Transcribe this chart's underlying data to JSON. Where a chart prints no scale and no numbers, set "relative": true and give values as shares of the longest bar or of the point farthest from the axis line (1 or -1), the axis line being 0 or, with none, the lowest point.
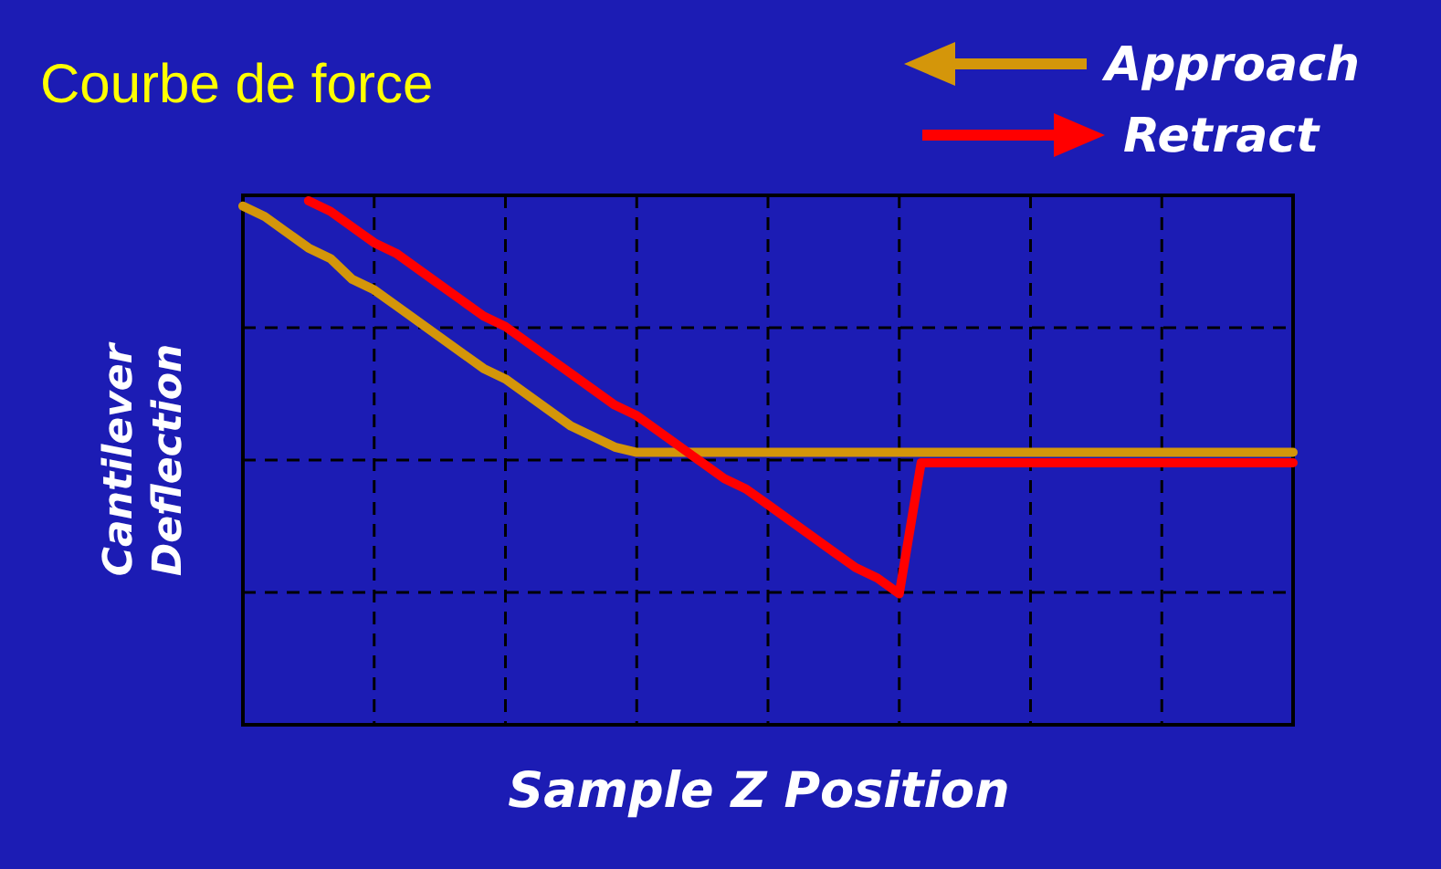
{
  "chart_data": {
    "type": "line",
    "title": "Courbe de force",
    "xlabel": "Sample Z Position",
    "ylabel": "Cantilever\nDeflection",
    "relative": true,
    "grid": true,
    "legend": "top right",
    "marker": "none",
    "line_style": "solid",
    "categories": [
      null,
      null,
      null,
      null,
      null,
      null,
      null,
      null,
      null,
      null,
      null,
      null,
      null,
      null,
      null,
      null,
      null,
      null,
      null,
      null,
      null,
      null,
      null,
      null,
      null,
      null,
      null,
      null,
      null,
      null,
      null,
      null,
      null,
      null,
      null,
      null,
      null,
      null,
      null,
      null,
      null,
      null,
      null,
      null,
      null,
      null,
      null,
      null,
      null
    ],
    "series": [
      {
        "name": "Approach",
        "color": "#d4960a",
        "values": [
          0.99,
          0.97,
          0.94,
          0.91,
          0.89,
          0.85,
          0.83,
          0.8,
          0.77,
          0.74,
          0.71,
          0.68,
          0.66,
          0.63,
          0.6,
          0.57,
          0.55,
          0.53,
          0.52,
          0.52,
          0.52,
          0.52,
          0.52,
          0.52,
          0.52,
          0.52,
          0.52,
          0.52,
          0.52,
          0.52,
          0.52,
          0.52,
          0.52,
          0.52,
          0.52,
          0.52,
          0.52,
          0.52,
          0.52,
          0.52,
          0.52,
          0.52,
          0.52,
          0.52,
          0.52,
          0.52,
          0.52,
          0.52,
          0.52
        ]
      },
      {
        "name": "Retract",
        "color": "#ff0000",
        "values": [
          null,
          null,
          null,
          1,
          0.98,
          0.95,
          0.92,
          0.9,
          0.87,
          0.84,
          0.81,
          0.78,
          0.76,
          0.73,
          0.7,
          0.67,
          0.64,
          0.61,
          0.59,
          0.56,
          0.53,
          0.5,
          0.47,
          0.45,
          0.42,
          0.39,
          0.36,
          0.33,
          0.3,
          0.28,
          0.25,
          0.5,
          0.5,
          0.5,
          0.5,
          0.5,
          0.5,
          0.5,
          0.5,
          0.5,
          0.5,
          0.5,
          0.5,
          0.5,
          0.5,
          0.5,
          0.5,
          0.5,
          0.5
        ]
      }
    ]
  }
}
